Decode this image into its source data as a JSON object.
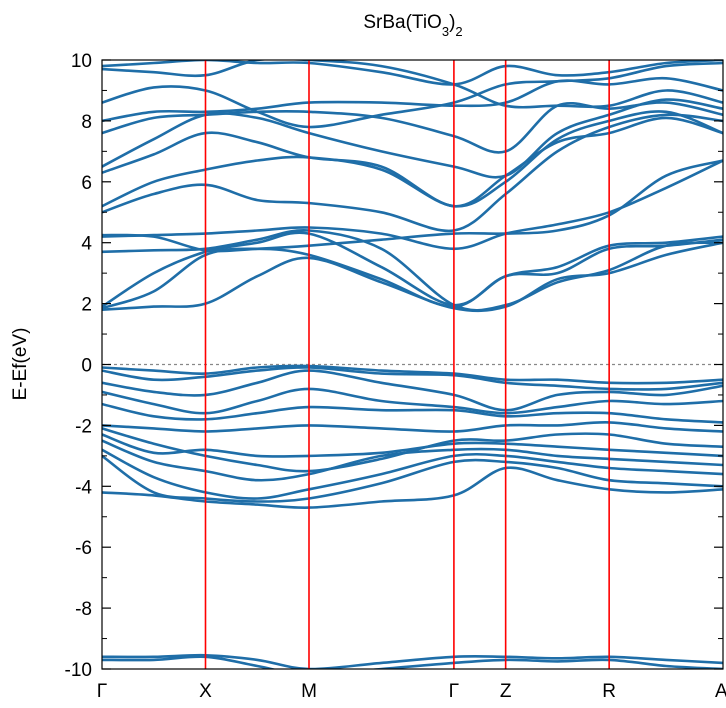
{
  "chart_data": {
    "type": "line",
    "title": "SrBa(TiO3)2",
    "title_parts": {
      "main": "SrBa(TiO",
      "sub1": "3",
      "close": ")",
      "sub2": "2"
    },
    "xlabel": "",
    "ylabel": "E-Ef(eV)",
    "ylim": [
      -10,
      10
    ],
    "yticks": [
      10,
      8,
      6,
      4,
      2,
      0,
      -2,
      -4,
      -6,
      -8,
      -10
    ],
    "ytick_labels": [
      "10",
      "8",
      "6",
      "4",
      "2",
      "0",
      "-2",
      "-4",
      "-6",
      "-8",
      "-10"
    ],
    "xlim": [
      0,
      6
    ],
    "kpoints": [
      {
        "label": "Γ",
        "x": 0
      },
      {
        "label": "X",
        "x": 1
      },
      {
        "label": "M",
        "x": 2
      },
      {
        "label": "Γ",
        "x": 3.4
      },
      {
        "label": "Z",
        "x": 3.9
      },
      {
        "label": "R",
        "x": 4.9
      },
      {
        "label": "A",
        "x": 6
      }
    ],
    "fermi_level": 0,
    "colors": {
      "bands": "#1f6ea8",
      "kpoint_lines": "#ff0000",
      "fermi": "#888888",
      "axes": "#000000"
    },
    "series_note_free": true,
    "x_nodes": [
      0,
      0.5,
      1,
      1.5,
      2,
      2.7,
      3.4,
      3.9,
      4.4,
      4.9,
      5.45,
      6
    ],
    "series": [
      {
        "values": [
          1.8,
          1.9,
          2.0,
          2.9,
          3.5,
          2.7,
          1.85,
          1.9,
          2.8,
          3.0,
          3.6,
          4.0
        ]
      },
      {
        "values": [
          1.85,
          2.4,
          3.6,
          3.8,
          3.6,
          2.8,
          1.9,
          2.9,
          3.0,
          3.8,
          3.9,
          4.1
        ]
      },
      {
        "values": [
          1.9,
          3.0,
          3.7,
          4.0,
          4.3,
          3.2,
          1.95,
          2.9,
          3.2,
          3.9,
          4.0,
          4.2
        ]
      },
      {
        "values": [
          3.7,
          3.75,
          3.8,
          4.1,
          4.4,
          3.8,
          1.95,
          1.95,
          2.7,
          3.1,
          3.9,
          4.0
        ]
      },
      {
        "values": [
          4.2,
          4.25,
          4.3,
          4.4,
          4.5,
          4.3,
          3.8,
          4.3,
          4.6,
          5.0,
          5.8,
          6.7
        ]
      },
      {
        "values": [
          4.25,
          4.2,
          3.75,
          3.8,
          3.9,
          4.1,
          4.3,
          4.3,
          4.4,
          4.9,
          6.2,
          6.7
        ]
      },
      {
        "values": [
          5.0,
          5.6,
          5.9,
          5.4,
          5.3,
          5.0,
          4.4,
          5.6,
          7.0,
          7.8,
          8.2,
          8.0
        ]
      },
      {
        "values": [
          5.2,
          6.0,
          6.4,
          6.7,
          6.8,
          6.4,
          5.2,
          6.0,
          7.4,
          8.0,
          8.3,
          7.6
        ]
      },
      {
        "values": [
          6.3,
          6.9,
          7.6,
          7.3,
          6.8,
          6.5,
          5.2,
          6.2,
          7.3,
          7.6,
          8.1,
          7.6
        ]
      },
      {
        "values": [
          6.5,
          7.4,
          8.2,
          8.1,
          7.6,
          7.0,
          6.5,
          6.2,
          7.6,
          8.2,
          8.7,
          8.4
        ]
      },
      {
        "values": [
          7.6,
          8.1,
          8.2,
          8.3,
          8.3,
          8.1,
          7.5,
          7.0,
          8.5,
          8.4,
          8.6,
          8.2
        ]
      },
      {
        "values": [
          8.0,
          8.3,
          8.3,
          8.4,
          8.6,
          8.6,
          8.5,
          8.6,
          9.3,
          9.2,
          9.4,
          9.0
        ]
      },
      {
        "values": [
          8.6,
          9.1,
          9.0,
          8.3,
          7.8,
          8.2,
          8.6,
          9.2,
          9.3,
          9.4,
          9.8,
          9.9
        ]
      },
      {
        "values": [
          9.8,
          9.9,
          10.0,
          9.9,
          9.9,
          9.6,
          9.2,
          9.8,
          9.5,
          9.6,
          9.9,
          10.0
        ]
      },
      {
        "values": [
          9.7,
          9.6,
          9.5,
          10.0,
          10.0,
          9.8,
          9.2,
          8.5,
          8.5,
          8.5,
          9.0,
          8.6
        ]
      },
      {
        "values": [
          -0.1,
          -0.2,
          -0.3,
          -0.1,
          -0.05,
          -0.2,
          -0.3,
          -0.5,
          -0.5,
          -0.6,
          -0.6,
          -0.5
        ]
      },
      {
        "values": [
          -0.2,
          -0.5,
          -0.4,
          -0.2,
          -0.1,
          -0.3,
          -0.35,
          -0.6,
          -0.7,
          -0.8,
          -0.8,
          -0.6
        ]
      },
      {
        "values": [
          -0.6,
          -0.9,
          -1.0,
          -0.6,
          -0.2,
          -0.6,
          -1.0,
          -1.5,
          -1.0,
          -0.9,
          -1.0,
          -0.7
        ]
      },
      {
        "values": [
          -0.9,
          -1.3,
          -1.6,
          -1.2,
          -0.8,
          -1.2,
          -1.4,
          -1.6,
          -1.4,
          -1.2,
          -1.3,
          -1.2
        ]
      },
      {
        "values": [
          -1.3,
          -1.7,
          -1.8,
          -1.6,
          -1.4,
          -1.5,
          -1.5,
          -1.7,
          -1.6,
          -1.6,
          -1.8,
          -1.9
        ]
      },
      {
        "values": [
          -2.0,
          -2.1,
          -2.2,
          -2.1,
          -2.0,
          -2.1,
          -2.2,
          -2.0,
          -2.0,
          -1.9,
          -2.1,
          -2.2
        ]
      },
      {
        "values": [
          -2.1,
          -2.6,
          -3.0,
          -3.3,
          -3.5,
          -3.1,
          -2.5,
          -2.5,
          -2.3,
          -2.3,
          -2.6,
          -2.7
        ]
      },
      {
        "values": [
          -2.3,
          -2.9,
          -2.8,
          -3.0,
          -3.0,
          -2.9,
          -2.6,
          -2.6,
          -2.7,
          -2.8,
          -2.9,
          -3.0
        ]
      },
      {
        "values": [
          -2.5,
          -3.2,
          -3.5,
          -3.8,
          -3.6,
          -3.0,
          -2.8,
          -2.8,
          -3.0,
          -3.1,
          -3.2,
          -3.3
        ]
      },
      {
        "values": [
          -2.8,
          -3.7,
          -4.2,
          -4.4,
          -4.1,
          -3.6,
          -3.0,
          -3.0,
          -3.2,
          -3.4,
          -3.5,
          -3.6
        ]
      },
      {
        "values": [
          -3.0,
          -4.2,
          -4.4,
          -4.5,
          -4.4,
          -3.9,
          -3.2,
          -3.2,
          -3.4,
          -3.8,
          -3.9,
          -4.0
        ]
      },
      {
        "values": [
          -4.2,
          -4.3,
          -4.5,
          -4.6,
          -4.7,
          -4.5,
          -4.3,
          -3.4,
          -3.8,
          -4.1,
          -4.2,
          -4.1
        ]
      },
      {
        "values": [
          -9.6,
          -9.6,
          -9.55,
          -9.7,
          -10.0,
          -9.8,
          -9.6,
          -9.6,
          -9.65,
          -9.6,
          -9.7,
          -9.8
        ]
      },
      {
        "values": [
          -9.7,
          -9.7,
          -9.6,
          -9.9,
          -10.2,
          -10.0,
          -9.8,
          -9.7,
          -9.75,
          -9.7,
          -9.9,
          -10.0
        ]
      }
    ]
  }
}
